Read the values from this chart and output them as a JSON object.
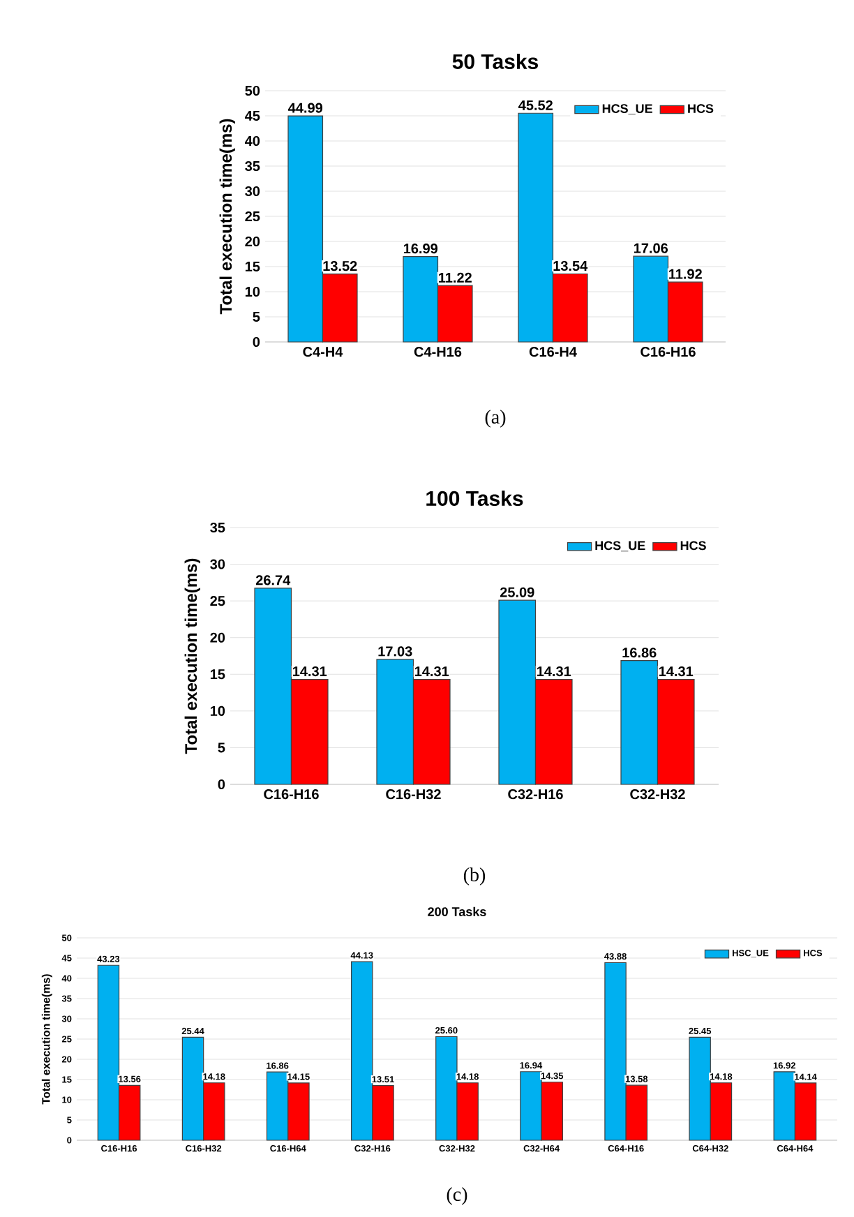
{
  "chart_data": [
    {
      "type": "bar",
      "title": "50 Tasks",
      "ylabel": "Total execution time(ms)",
      "categories": [
        "C4-H4",
        "C4-H16",
        "C16-H4",
        "C16-H16"
      ],
      "series": [
        {
          "name": "HCS_UE",
          "color": "#00b0f0",
          "values": [
            44.99,
            16.99,
            45.52,
            17.06
          ],
          "value_labels": [
            "44.99",
            "16.99",
            "45.52",
            "17.06"
          ]
        },
        {
          "name": "HCS",
          "color": "#ff0000",
          "values": [
            13.52,
            11.22,
            13.54,
            11.92
          ],
          "value_labels": [
            "13.52",
            "11.22",
            "13.54",
            "11.92"
          ]
        }
      ],
      "ylim": [
        0,
        50
      ],
      "yticks": [
        0,
        5,
        10,
        15,
        20,
        25,
        30,
        35,
        40,
        45,
        50
      ],
      "grid": "y",
      "legend": "top right",
      "annotations": [
        "(a)"
      ]
    },
    {
      "type": "bar",
      "title": "100 Tasks",
      "ylabel": "Total execution time(ms)",
      "categories": [
        "C16-H16",
        "C16-H32",
        "C32-H16",
        "C32-H32"
      ],
      "series": [
        {
          "name": "HCS_UE",
          "color": "#00b0f0",
          "values": [
            26.74,
            17.03,
            25.09,
            16.86
          ],
          "value_labels": [
            "26.74",
            "17.03",
            "25.09",
            "16.86"
          ]
        },
        {
          "name": "HCS",
          "color": "#ff0000",
          "values": [
            14.31,
            14.31,
            14.31,
            14.31
          ],
          "value_labels": [
            "14.31",
            "14.31",
            "14.31",
            "14.31"
          ]
        }
      ],
      "ylim": [
        0,
        35
      ],
      "yticks": [
        0,
        5,
        10,
        15,
        20,
        25,
        30,
        35
      ],
      "grid": "y",
      "legend": "top right",
      "annotations": [
        "(b)"
      ]
    },
    {
      "type": "bar",
      "title": "200 Tasks",
      "ylabel": "Total execution time(ms)",
      "categories": [
        "C16-H16",
        "C16-H32",
        "C16-H64",
        "C32-H16",
        "C32-H32",
        "C32-H64",
        "C64-H16",
        "C64-H32",
        "C64-H64"
      ],
      "series": [
        {
          "name": "HSC_UE",
          "color": "#00b0f0",
          "values": [
            43.23,
            25.44,
            16.86,
            44.13,
            25.6,
            16.94,
            43.88,
            25.45,
            16.92
          ],
          "value_labels": [
            "43.23",
            "25.44",
            "16.86",
            "44.13",
            "25.60",
            "16.94",
            "43.88",
            "25.45",
            "16.92"
          ]
        },
        {
          "name": "HCS",
          "color": "#ff0000",
          "values": [
            13.56,
            14.18,
            14.15,
            13.51,
            14.18,
            14.35,
            13.58,
            14.18,
            14.14
          ],
          "value_labels": [
            "13.56",
            "14.18",
            "14.15",
            "13.51",
            "14.18",
            "14.35",
            "13.58",
            "14.18",
            "14.14"
          ]
        }
      ],
      "ylim": [
        0,
        50
      ],
      "yticks": [
        0,
        5,
        10,
        15,
        20,
        25,
        30,
        35,
        40,
        45,
        50
      ],
      "grid": "y",
      "legend": "top right",
      "annotations": [
        "(c)"
      ]
    }
  ]
}
